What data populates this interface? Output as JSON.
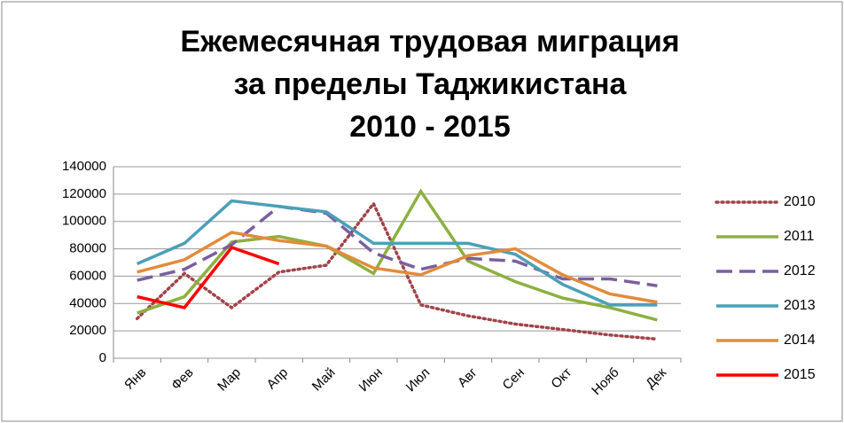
{
  "chart_data": {
    "type": "line",
    "title": [
      "Ежемесячная трудовая миграция",
      "за пределы Таджикистана",
      "2010 - 2015"
    ],
    "categories": [
      "Янв",
      "Фев",
      "Мар",
      "Апр",
      "Май",
      "Июн",
      "Июл",
      "Авг",
      "Сен",
      "Окт",
      "Нояб",
      "Дек"
    ],
    "series": [
      {
        "name": "2010",
        "color": "#a0434a",
        "dash": "dotted",
        "values": [
          29000,
          62000,
          37000,
          63000,
          68000,
          113000,
          39000,
          31000,
          25000,
          21000,
          17000,
          14000
        ]
      },
      {
        "name": "2011",
        "color": "#8db040",
        "dash": "solid",
        "values": [
          33000,
          45000,
          85000,
          89000,
          82000,
          62000,
          122000,
          71000,
          56000,
          44000,
          37000,
          28000
        ]
      },
      {
        "name": "2012",
        "color": "#7a5fa0",
        "dash": "dashed",
        "values": [
          57000,
          65000,
          83000,
          111000,
          106000,
          77000,
          65000,
          73000,
          71000,
          58000,
          58000,
          53000
        ]
      },
      {
        "name": "2013",
        "color": "#4aa0b8",
        "dash": "solid",
        "values": [
          69000,
          84000,
          115000,
          111000,
          107000,
          84000,
          84000,
          84000,
          76000,
          54000,
          39000,
          39000
        ]
      },
      {
        "name": "2014",
        "color": "#e38b3a",
        "dash": "solid",
        "values": [
          63000,
          72000,
          92000,
          86000,
          82000,
          66000,
          61000,
          75000,
          80000,
          61000,
          47000,
          41000
        ]
      },
      {
        "name": "2015",
        "color": "#ff0000",
        "dash": "solid",
        "values": [
          45000,
          37000,
          81000,
          69000,
          null,
          null,
          null,
          null,
          null,
          null,
          null,
          null
        ]
      }
    ],
    "ylim": [
      0,
      140000
    ],
    "yticks": [
      0,
      20000,
      40000,
      60000,
      80000,
      100000,
      120000,
      140000
    ],
    "grid": true,
    "legend": "right"
  }
}
